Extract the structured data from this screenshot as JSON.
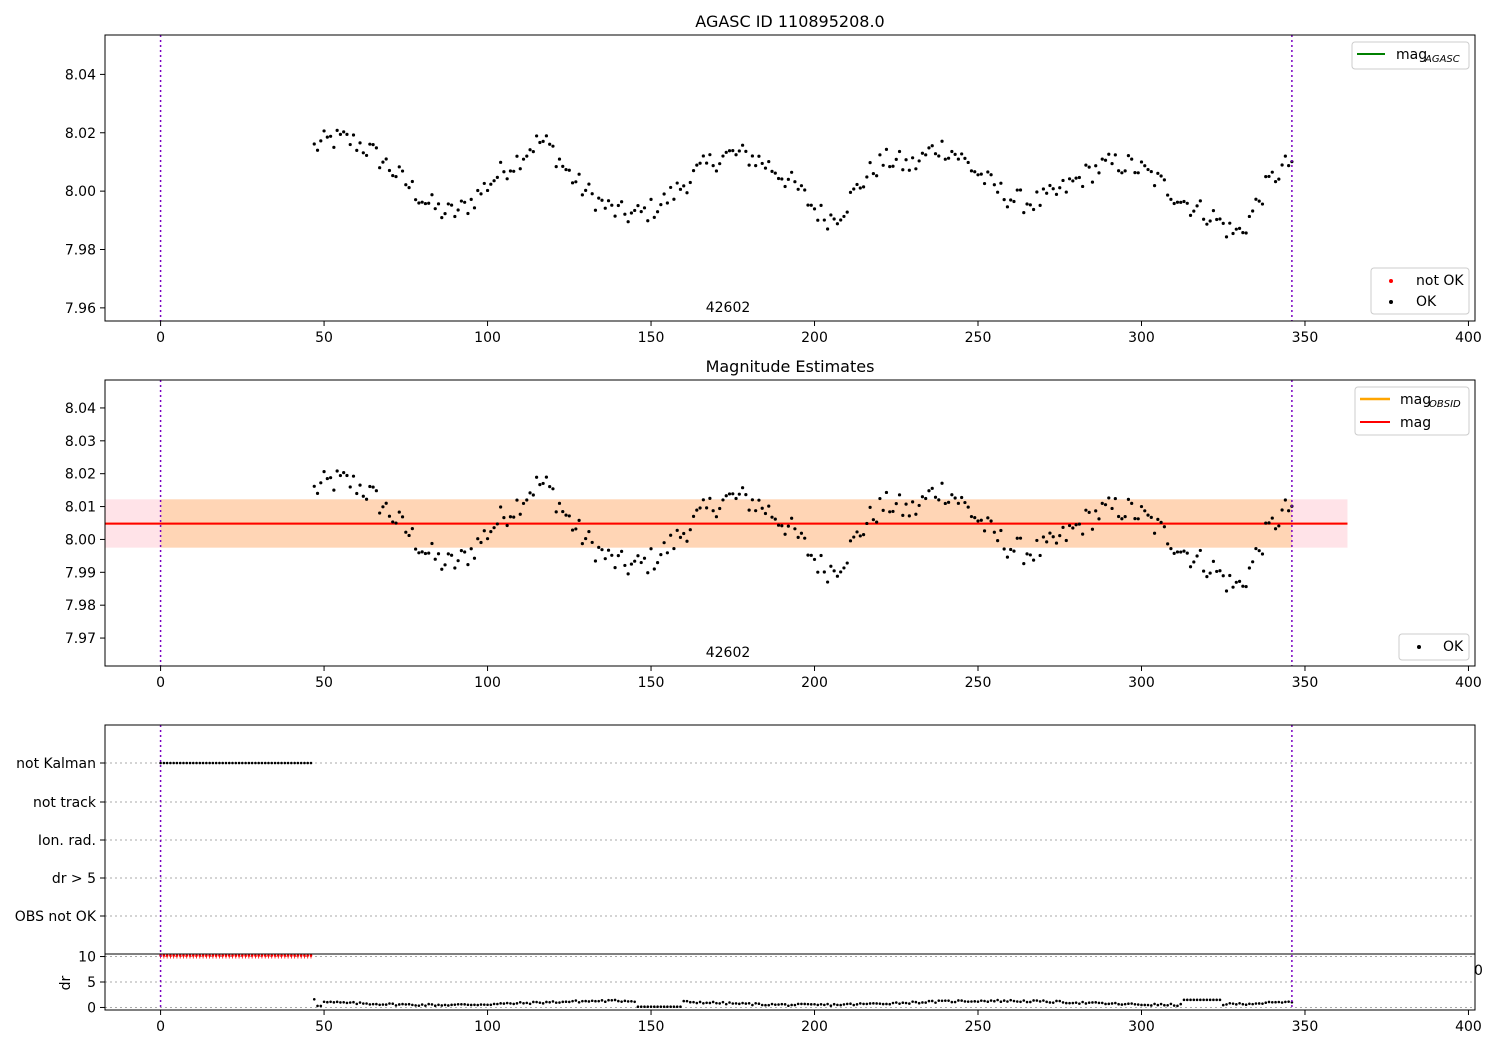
{
  "chart_data": [
    {
      "type": "scatter",
      "title": "AGASC ID 110895208.0",
      "xlim": [
        -17,
        402
      ],
      "ylim": [
        7.9555,
        8.0535
      ],
      "xticks": [
        0,
        50,
        100,
        150,
        200,
        250,
        300,
        350,
        400
      ],
      "yticks": [
        7.96,
        7.98,
        8.0,
        8.02,
        8.04
      ],
      "ytick_decimals": 2,
      "vlines": [
        0,
        346
      ],
      "vline_color": "#7a00c2",
      "annotation": {
        "text": "42602",
        "x": 173
      },
      "legend_top": [
        {
          "label": "mag",
          "sub": "AGASC",
          "color": "#008000"
        }
      ],
      "legend_bottom": [
        {
          "label": "not OK",
          "color": "#ff0000"
        },
        {
          "label": "OK",
          "color": "#000000"
        }
      ],
      "legend_top_loc": "upper right",
      "legend_bottom_loc": "lower right",
      "points_x_range": [
        47,
        346
      ],
      "points_count": 300,
      "points_mean": 8.0048
    },
    {
      "type": "scatter",
      "title": "Magnitude Estimates",
      "xlim": [
        -17,
        402
      ],
      "ylim": [
        7.9615,
        8.0485
      ],
      "xticks": [
        0,
        50,
        100,
        150,
        200,
        250,
        300,
        350,
        400
      ],
      "yticks": [
        7.97,
        7.98,
        7.99,
        8.0,
        8.01,
        8.02,
        8.03,
        8.04
      ],
      "ytick_decimals": 2,
      "vlines": [
        0,
        346
      ],
      "vline_color": "#7a00c2",
      "annotation": {
        "text": "42602",
        "x": 173
      },
      "mag_mean": 8.0048,
      "mag_band": [
        7.9975,
        8.0122
      ],
      "band_x_range": [
        -17,
        363
      ],
      "obsid_band_x_range": [
        0,
        346
      ],
      "legend_top": [
        {
          "label": "mag",
          "sub": "OBSID",
          "color": "#ffa500"
        },
        {
          "label": "mag",
          "sub": "",
          "color": "#ff0000"
        }
      ],
      "legend_bottom": [
        {
          "label": "OK",
          "color": "#000000"
        }
      ],
      "legend_top_loc": "upper right",
      "legend_bottom_loc": "lower right"
    },
    {
      "type": "scatter",
      "title": "",
      "xlim": [
        -17,
        402
      ],
      "xticks": [
        0,
        50,
        100,
        150,
        200,
        250,
        300,
        350,
        400
      ],
      "flags": [
        "not Kalman",
        "not track",
        "Ion. rad.",
        "dr > 5",
        "OBS not OK"
      ],
      "flag_not_kalman_x_range": [
        0,
        46
      ],
      "vlines": [
        0,
        346
      ],
      "vline_color": "#7a00c2",
      "dr_label": "dr",
      "dr_yticks": [
        0,
        5,
        10
      ],
      "dr_ylim": [
        -0.5,
        10.5
      ],
      "dr_clipped_value": 10,
      "dr_clipped_x_range": [
        0,
        46
      ],
      "dr_clipped_color": "#ff0000",
      "dr_values_x_range": [
        47,
        346
      ],
      "stray_label": "0"
    }
  ]
}
